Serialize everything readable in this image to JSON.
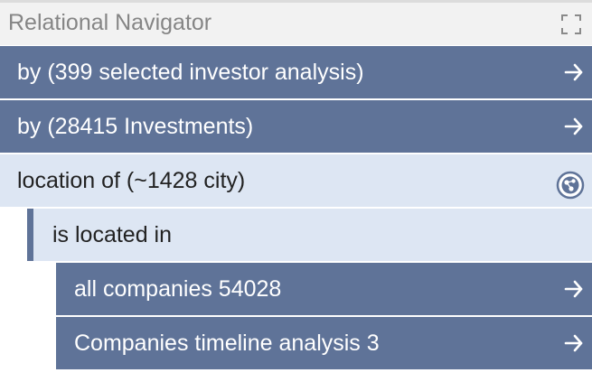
{
  "header": {
    "title": "Relational Navigator",
    "maximize_icon": "maximize-icon"
  },
  "rows": [
    {
      "label": "by (399 selected investor analysis)",
      "icon": "arrow-right-icon",
      "style": "dark"
    },
    {
      "label": "by (28415 Investments)",
      "icon": "arrow-right-icon",
      "style": "dark"
    },
    {
      "label": "location of (~1428 city)",
      "icon": "graph-icon",
      "style": "light"
    },
    {
      "label": "is located in",
      "style": "light"
    },
    {
      "label": "all companies 54028",
      "icon": "arrow-right-icon",
      "style": "dark"
    },
    {
      "label": "Companies timeline analysis 3",
      "icon": "arrow-right-icon",
      "style": "dark"
    }
  ],
  "colors": {
    "row_dark": "#5f7398",
    "row_light": "#dde6f3",
    "header_bg": "#f2f2f2",
    "header_text": "#858585"
  }
}
